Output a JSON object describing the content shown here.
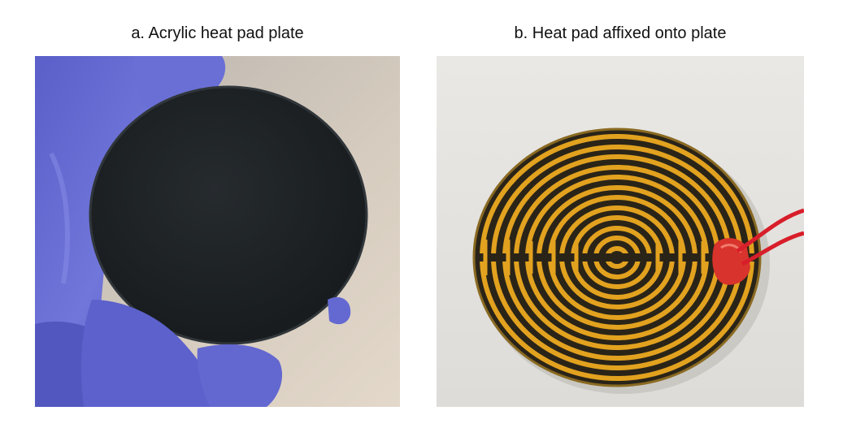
{
  "panels": [
    {
      "caption": "a. Acrylic heat pad plate",
      "photo": "black-acrylic-disc-held-in-blue-gloved-hand",
      "colors": {
        "background": "#cfc6bb",
        "glove": "#6b6fd4",
        "disc": "#1c2124"
      }
    },
    {
      "caption": "b. Heat pad affixed onto plate",
      "photo": "polyimide-heat-pad-with-spiral-trace-and-red-leads",
      "colors": {
        "background": "#e7e6e3",
        "trace": "#e2a21f",
        "gap": "#2a2418",
        "wire": "#d81e2a"
      }
    }
  ]
}
